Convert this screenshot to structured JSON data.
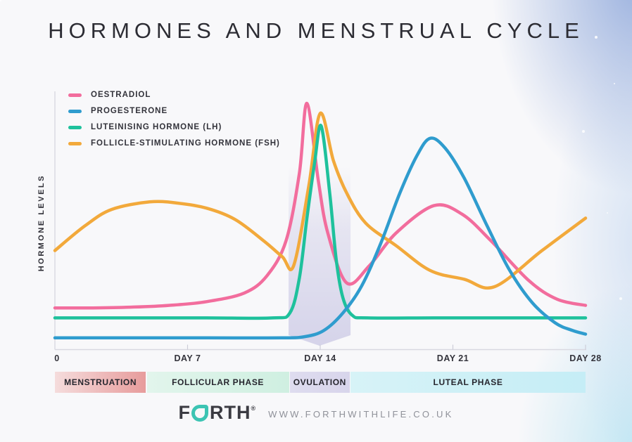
{
  "title": "HORMONES AND MENSTRUAL CYCLE",
  "chart_data": {
    "type": "line",
    "title": "Hormones and Menstrual Cycle",
    "ylabel": "HORMONE LEVELS",
    "xlabel": "",
    "x_unit": "day of cycle",
    "x_range": [
      0,
      28
    ],
    "y_range_note": "relative hormone level, unlabeled axis (0-100 est.)",
    "grid": false,
    "legend_position": "top-left inside plot",
    "x_ticks": [
      {
        "day": 0,
        "label": "0"
      },
      {
        "day": 7,
        "label": "DAY 7"
      },
      {
        "day": 14,
        "label": "DAY 14"
      },
      {
        "day": 21,
        "label": "DAY 21"
      },
      {
        "day": 28,
        "label": "DAY 28"
      }
    ],
    "series": [
      {
        "name": "OESTRADIOL",
        "color": "#F26D9D",
        "points": [
          [
            0,
            16
          ],
          [
            2,
            16
          ],
          [
            4,
            16.3
          ],
          [
            6,
            17
          ],
          [
            8,
            18.5
          ],
          [
            10,
            22
          ],
          [
            11.2,
            29
          ],
          [
            12.2,
            43
          ],
          [
            12.9,
            70
          ],
          [
            13.3,
            98
          ],
          [
            13.9,
            67
          ],
          [
            14.4,
            46
          ],
          [
            15.4,
            26
          ],
          [
            16.6,
            33
          ],
          [
            18,
            46
          ],
          [
            20,
            57
          ],
          [
            21.5,
            53.5
          ],
          [
            23,
            43
          ],
          [
            25,
            27
          ],
          [
            26.5,
            19.5
          ],
          [
            28,
            17
          ]
        ]
      },
      {
        "name": "PROGESTERONE",
        "color": "#2F9CCE",
        "points": [
          [
            0,
            4
          ],
          [
            4,
            4
          ],
          [
            8,
            4
          ],
          [
            12,
            4
          ],
          [
            13.2,
            4.5
          ],
          [
            14.2,
            7
          ],
          [
            15.2,
            14
          ],
          [
            16.2,
            25
          ],
          [
            17.2,
            42
          ],
          [
            18.2,
            62
          ],
          [
            19.1,
            77
          ],
          [
            19.8,
            84
          ],
          [
            20.6,
            80
          ],
          [
            21.6,
            68
          ],
          [
            22.8,
            49
          ],
          [
            24,
            31
          ],
          [
            25.2,
            18
          ],
          [
            26.4,
            10
          ],
          [
            27.3,
            7
          ],
          [
            28,
            5.5
          ]
        ]
      },
      {
        "name": "LUTEINISING HORMONE (LH)",
        "color": "#1EC19C",
        "points": [
          [
            0,
            12
          ],
          [
            4,
            12
          ],
          [
            8,
            12
          ],
          [
            11.5,
            12
          ],
          [
            12.4,
            14
          ],
          [
            12.9,
            28
          ],
          [
            13.3,
            52
          ],
          [
            13.7,
            74
          ],
          [
            14.05,
            89
          ],
          [
            14.5,
            62
          ],
          [
            14.85,
            35
          ],
          [
            15.2,
            20
          ],
          [
            15.7,
            13
          ],
          [
            16.5,
            12
          ],
          [
            20,
            12
          ],
          [
            24,
            12
          ],
          [
            28,
            12
          ]
        ]
      },
      {
        "name": "FOLLICLE-STIMULATING HORMONE (FSH)",
        "color": "#F2A93B",
        "points": [
          [
            0,
            39
          ],
          [
            1.6,
            49
          ],
          [
            3,
            55.5
          ],
          [
            5,
            58.5
          ],
          [
            6.5,
            58
          ],
          [
            8,
            56
          ],
          [
            9.5,
            51.5
          ],
          [
            11,
            43
          ],
          [
            12,
            36.5
          ],
          [
            12.6,
            33
          ],
          [
            13.4,
            65
          ],
          [
            14,
            94
          ],
          [
            14.7,
            75
          ],
          [
            15.4,
            62
          ],
          [
            16.4,
            50
          ],
          [
            18,
            41
          ],
          [
            19.8,
            31
          ],
          [
            21.6,
            27.5
          ],
          [
            23.2,
            24.5
          ],
          [
            25.7,
            39
          ],
          [
            28,
            52
          ]
        ]
      }
    ],
    "highlight_band": {
      "name": "ovulation",
      "from_day": 12.33,
      "to_day": 15.6,
      "color": "#CFCDE7"
    }
  },
  "phases": [
    {
      "label": "MENSTRUATION",
      "from_day": 0,
      "to_day": 4.8,
      "color_from": "#F5DCDC",
      "color_to": "#E79C9C"
    },
    {
      "label": "FOLLICULAR PHASE",
      "from_day": 4.85,
      "to_day": 12.35,
      "color_from": "#E2F5EC",
      "color_to": "#CFEFE1"
    },
    {
      "label": "OVULATION",
      "from_day": 12.4,
      "to_day": 15.55,
      "color_from": "#DEDCEF",
      "color_to": "#D8D5EB"
    },
    {
      "label": "LUTEAL PHASE",
      "from_day": 15.6,
      "to_day": 28,
      "color_from": "#D7F3F7",
      "color_to": "#C5EDF6"
    }
  ],
  "footer": {
    "brand": "FORTH",
    "registered": "®",
    "url": "WWW.FORTHWITHLIFE.CO.UK"
  }
}
